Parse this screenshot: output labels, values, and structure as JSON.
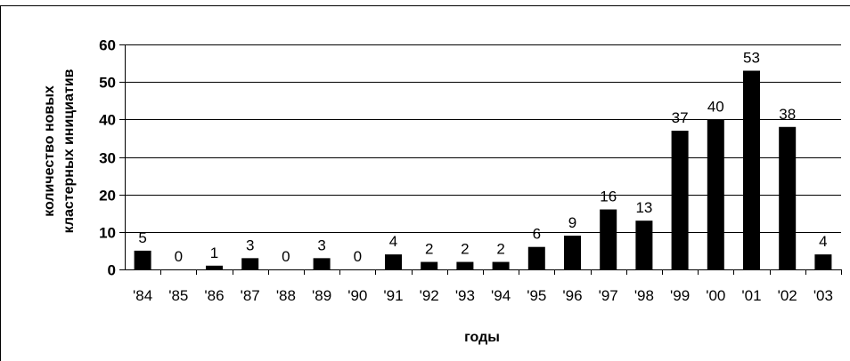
{
  "chart_data": {
    "type": "bar",
    "categories": [
      "'84",
      "'85",
      "'86",
      "'87",
      "'88",
      "'89",
      "'90",
      "'91",
      "'92",
      "'93",
      "'94",
      "'95",
      "'96",
      "'97",
      "'98",
      "'99",
      "'00",
      "'01",
      "'02",
      "'03"
    ],
    "values": [
      5,
      0,
      1,
      3,
      0,
      3,
      0,
      4,
      2,
      2,
      2,
      6,
      9,
      16,
      13,
      37,
      40,
      53,
      38,
      4
    ],
    "xlabel": "годы",
    "ylabel": [
      "количество новых",
      "кластерных инициатив"
    ],
    "ylim": [
      0,
      60
    ],
    "yticks": [
      0,
      10,
      20,
      30,
      40,
      50,
      60
    ],
    "grid": true,
    "bar_color": "#000000",
    "legend": "none"
  }
}
